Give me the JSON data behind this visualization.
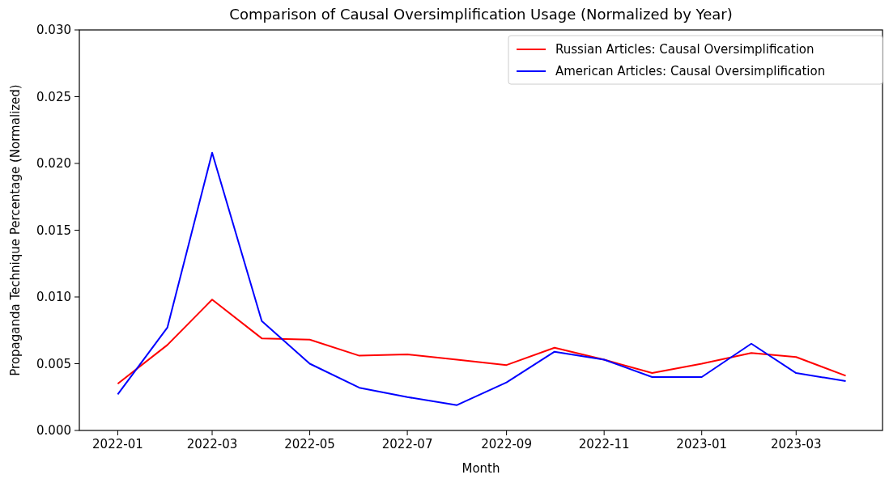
{
  "chart_data": {
    "type": "line",
    "title": "Comparison of Causal Oversimplification Usage (Normalized by Year)",
    "xlabel": "Month",
    "ylabel": "Propaganda Technique Percentage (Normalized)",
    "x": [
      "2022-01",
      "2022-02",
      "2022-03",
      "2022-04",
      "2022-05",
      "2022-06",
      "2022-07",
      "2022-08",
      "2022-09",
      "2022-10",
      "2022-11",
      "2022-12",
      "2023-01",
      "2023-02",
      "2023-03",
      "2023-04"
    ],
    "series": [
      {
        "name": "Russian Articles: Causal Oversimplification",
        "color": "#ff0000",
        "values": [
          0.0035,
          0.0064,
          0.0098,
          0.0069,
          0.0068,
          0.0056,
          0.0057,
          0.0053,
          0.0049,
          0.0062,
          0.0053,
          0.0043,
          0.005,
          0.0058,
          0.0055,
          0.0041
        ]
      },
      {
        "name": "American Articles: Causal Oversimplification",
        "color": "#0000ff",
        "values": [
          0.0027,
          0.0077,
          0.0208,
          0.0082,
          0.005,
          0.0032,
          0.0025,
          0.0019,
          0.0036,
          0.0059,
          0.0053,
          0.004,
          0.004,
          0.0065,
          0.0043,
          0.0037
        ]
      }
    ],
    "xlim": [
      "2021-12-08",
      "2023-04-24"
    ],
    "xticks": [
      "2022-01",
      "2022-03",
      "2022-05",
      "2022-07",
      "2022-09",
      "2022-11",
      "2023-01",
      "2023-03"
    ],
    "ylim": [
      0,
      0.03
    ],
    "yticks": [
      {
        "value": 0,
        "label": "0.000"
      },
      {
        "value": 0.005,
        "label": "0.005"
      },
      {
        "value": 0.01,
        "label": "0.010"
      },
      {
        "value": 0.015,
        "label": "0.015"
      },
      {
        "value": 0.02,
        "label": "0.020"
      },
      {
        "value": 0.025,
        "label": "0.025"
      },
      {
        "value": 0.03,
        "label": "0.030"
      }
    ],
    "legend": "top right",
    "grid": false,
    "marker": "none",
    "line_style": "solid"
  }
}
